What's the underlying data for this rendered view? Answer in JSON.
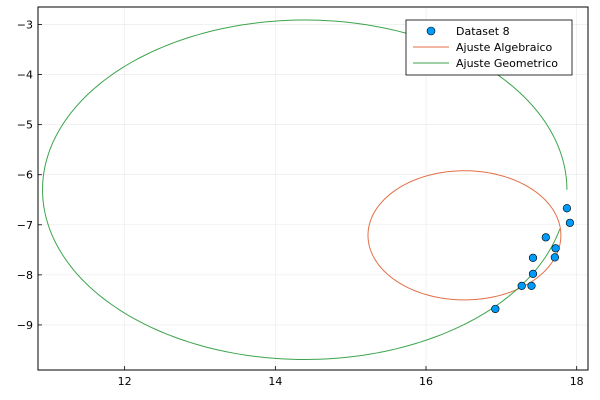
{
  "chart_data": {
    "type": "scatter",
    "xlim": [
      10.85,
      18.15
    ],
    "ylim": [
      -9.9,
      -2.65
    ],
    "xticks": [
      12,
      14,
      16,
      18
    ],
    "yticks": [
      -3,
      -4,
      -5,
      -6,
      -7,
      -8,
      -9
    ],
    "xtick_labels": [
      "12",
      "14",
      "16",
      "18"
    ],
    "ytick_labels": [
      "−3",
      "−4",
      "−5",
      "−6",
      "−7",
      "−8",
      "−9"
    ],
    "grid": true,
    "legend_position": "top-right",
    "series": [
      {
        "name": "Dataset 8",
        "kind": "scatter",
        "color": "#009AFA",
        "points": [
          [
            17.87,
            -6.67
          ],
          [
            17.91,
            -6.96
          ],
          [
            17.59,
            -7.25
          ],
          [
            17.72,
            -7.47
          ],
          [
            17.71,
            -7.65
          ],
          [
            17.42,
            -7.66
          ],
          [
            17.42,
            -7.98
          ],
          [
            17.27,
            -8.22
          ],
          [
            17.4,
            -8.22
          ],
          [
            16.92,
            -8.68
          ]
        ]
      },
      {
        "name": "Ajuste Algebraico",
        "kind": "ellipse",
        "color": "#E26F46",
        "ellipse": {
          "cx": 16.51,
          "cy": -7.21,
          "rx": 1.28,
          "ry": 1.29,
          "theta_start": 0.19,
          "theta_end": 6.473
        }
      },
      {
        "name": "Ajuste Geometrico",
        "kind": "ellipse",
        "color": "#3DA44D",
        "ellipse": {
          "cx": 14.39,
          "cy": -6.3,
          "rx": 3.48,
          "ry": 3.39,
          "theta_start": 0.0,
          "theta_end": 6.05
        }
      }
    ]
  }
}
